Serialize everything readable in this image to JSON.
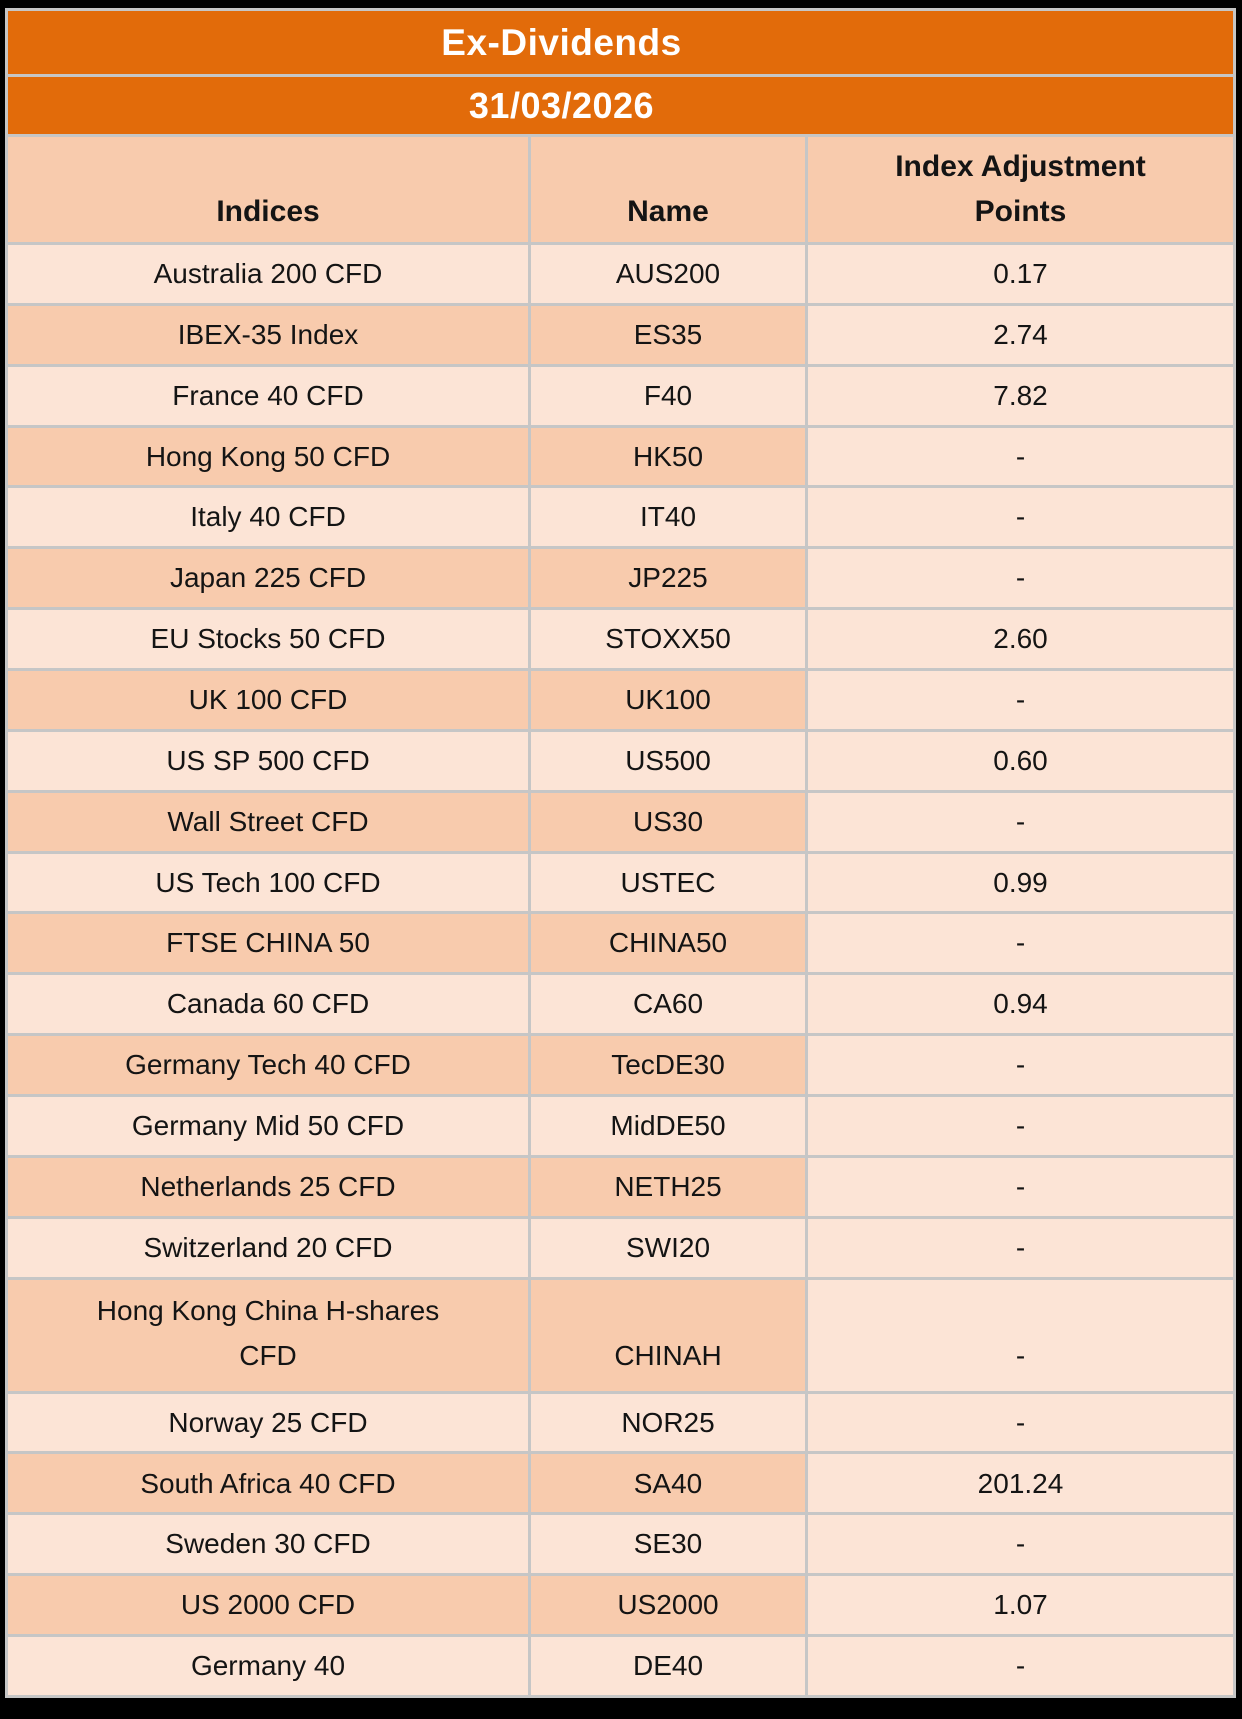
{
  "colors": {
    "band_orange": "#E26B0A",
    "row_light": "#FCE4D6",
    "row_dark": "#F8CBAD",
    "grid_line": "#C6C6C6",
    "band_text": "#FFFFFF",
    "cell_text": "#141414",
    "frame_black": "#000000"
  },
  "chart_data": {
    "type": "table",
    "title": "Ex-Dividends",
    "date": "31/03/2026",
    "columns": [
      "Indices",
      "Name",
      "Index Adjustment Points"
    ],
    "rows": [
      {
        "indices": "Australia 200 CFD",
        "name": "AUS200",
        "points": "0.17"
      },
      {
        "indices": "IBEX-35 Index",
        "name": "ES35",
        "points": "2.74"
      },
      {
        "indices": "France 40 CFD",
        "name": "F40",
        "points": "7.82"
      },
      {
        "indices": "Hong Kong 50 CFD",
        "name": "HK50",
        "points": "-"
      },
      {
        "indices": "Italy 40 CFD",
        "name": "IT40",
        "points": "-"
      },
      {
        "indices": "Japan 225 CFD",
        "name": "JP225",
        "points": "-"
      },
      {
        "indices": "EU Stocks 50 CFD",
        "name": "STOXX50",
        "points": "2.60"
      },
      {
        "indices": "UK 100 CFD",
        "name": "UK100",
        "points": "-"
      },
      {
        "indices": "US SP 500 CFD",
        "name": "US500",
        "points": "0.60"
      },
      {
        "indices": "Wall Street CFD",
        "name": "US30",
        "points": "-"
      },
      {
        "indices": "US Tech 100 CFD",
        "name": "USTEC",
        "points": "0.99"
      },
      {
        "indices": "FTSE CHINA 50",
        "name": "CHINA50",
        "points": "-"
      },
      {
        "indices": "Canada 60 CFD",
        "name": "CA60",
        "points": "0.94"
      },
      {
        "indices": "Germany Tech 40 CFD",
        "name": "TecDE30",
        "points": "-"
      },
      {
        "indices": "Germany Mid 50 CFD",
        "name": "MidDE50",
        "points": "-"
      },
      {
        "indices": "Netherlands 25 CFD",
        "name": "NETH25",
        "points": "-"
      },
      {
        "indices": "Switzerland 20 CFD",
        "name": "SWI20",
        "points": "-"
      },
      {
        "indices": "Hong Kong China H-shares CFD",
        "name": "CHINAH",
        "points": "-"
      },
      {
        "indices": "Norway 25 CFD",
        "name": "NOR25",
        "points": "-"
      },
      {
        "indices": "South Africa 40 CFD",
        "name": "SA40",
        "points": "201.24"
      },
      {
        "indices": "Sweden 30 CFD",
        "name": "SE30",
        "points": "-"
      },
      {
        "indices": "US 2000 CFD",
        "name": "US2000",
        "points": "1.07"
      },
      {
        "indices": "Germany 40",
        "name": "DE40",
        "points": "-"
      }
    ]
  }
}
